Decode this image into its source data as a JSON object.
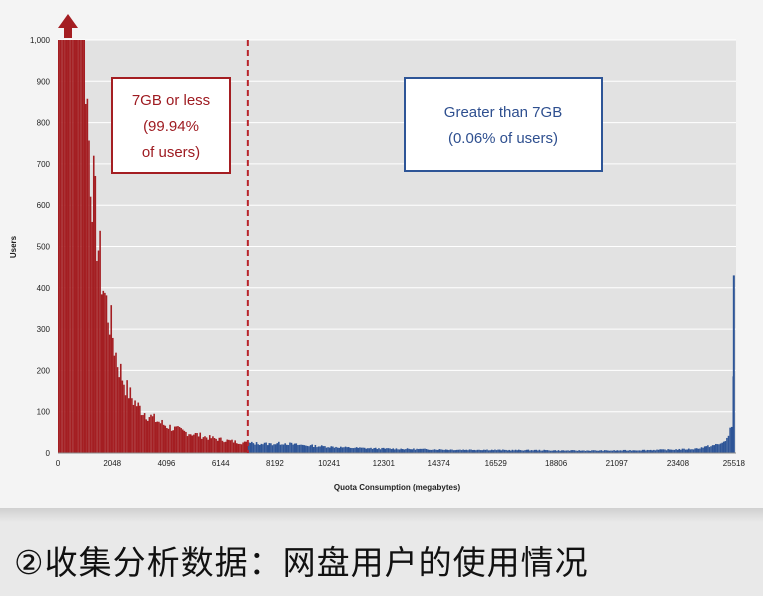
{
  "caption": "②收集分析数据：网盘用户的使用情况",
  "colors": {
    "left_series": "#a41e22",
    "right_series": "#2e5597",
    "threshold_line": "#b8232a",
    "plot_bg": "#e2e2e2"
  },
  "chart_data": {
    "type": "bar",
    "title": "",
    "xlabel": "Quota Consumption (megabytes)",
    "ylabel": "Users",
    "ylim": [
      0,
      1000
    ],
    "x_range_mb": [
      0,
      25600
    ],
    "y_ticks": [
      "0",
      "100",
      "200",
      "300",
      "400",
      "500",
      "600",
      "700",
      "800",
      "900",
      "1,000"
    ],
    "x_ticks": [
      {
        "label": "0",
        "mb": 0
      },
      {
        "label": "2048",
        "mb": 2048
      },
      {
        "label": "4096",
        "mb": 4096
      },
      {
        "label": "6144",
        "mb": 6144
      },
      {
        "label": "8192",
        "mb": 8192
      },
      {
        "label": "10241",
        "mb": 10241
      },
      {
        "label": "12301",
        "mb": 12301
      },
      {
        "label": "14374",
        "mb": 14374
      },
      {
        "label": "16529",
        "mb": 16529
      },
      {
        "label": "18806",
        "mb": 18806
      },
      {
        "label": "21097",
        "mb": 21097
      },
      {
        "label": "23408",
        "mb": 23408
      },
      {
        "label": "25518",
        "mb": 25518
      }
    ],
    "threshold_mb": 7168,
    "clipped_indicator": "up-arrow at x≈0 (values exceed 1,000)",
    "series": [
      {
        "name": "7GB or less (99.94% of users)",
        "color": "#a41e22",
        "points": [
          [
            0,
            1000
          ],
          [
            300,
            1000
          ],
          [
            600,
            1000
          ],
          [
            900,
            1000
          ],
          [
            1000,
            1000
          ],
          [
            1100,
            800
          ],
          [
            1200,
            700
          ],
          [
            1300,
            640
          ],
          [
            1400,
            560
          ],
          [
            1500,
            500
          ],
          [
            1600,
            440
          ],
          [
            1700,
            395
          ],
          [
            1800,
            360
          ],
          [
            1900,
            330
          ],
          [
            2000,
            300
          ],
          [
            2100,
            260
          ],
          [
            2200,
            225
          ],
          [
            2400,
            185
          ],
          [
            2600,
            150
          ],
          [
            2800,
            130
          ],
          [
            3000,
            112
          ],
          [
            3300,
            95
          ],
          [
            3600,
            82
          ],
          [
            4000,
            68
          ],
          [
            4400,
            58
          ],
          [
            4800,
            50
          ],
          [
            5200,
            45
          ],
          [
            5600,
            38
          ],
          [
            6000,
            34
          ],
          [
            6400,
            30
          ],
          [
            6800,
            26
          ],
          [
            7168,
            24
          ]
        ]
      },
      {
        "name": "Greater than 7GB (0.06% of users)",
        "color": "#2e5597",
        "points": [
          [
            7168,
            24
          ],
          [
            8000,
            22
          ],
          [
            8500,
            24
          ],
          [
            9000,
            20
          ],
          [
            10000,
            16
          ],
          [
            11000,
            13
          ],
          [
            12000,
            11
          ],
          [
            13000,
            10
          ],
          [
            14000,
            9
          ],
          [
            15000,
            8
          ],
          [
            16000,
            8
          ],
          [
            17000,
            7
          ],
          [
            18000,
            7
          ],
          [
            19000,
            6
          ],
          [
            20000,
            6
          ],
          [
            21000,
            6
          ],
          [
            22000,
            7
          ],
          [
            23000,
            8
          ],
          [
            24000,
            10
          ],
          [
            25000,
            22
          ],
          [
            25300,
            40
          ],
          [
            25450,
            80
          ],
          [
            25518,
            430
          ]
        ]
      }
    ],
    "annotations": [
      {
        "side": "left",
        "lines": [
          "7GB or less",
          "(99.94%",
          "of users)"
        ]
      },
      {
        "side": "right",
        "lines": [
          "Greater than 7GB",
          "(0.06% of users)"
        ]
      }
    ]
  }
}
